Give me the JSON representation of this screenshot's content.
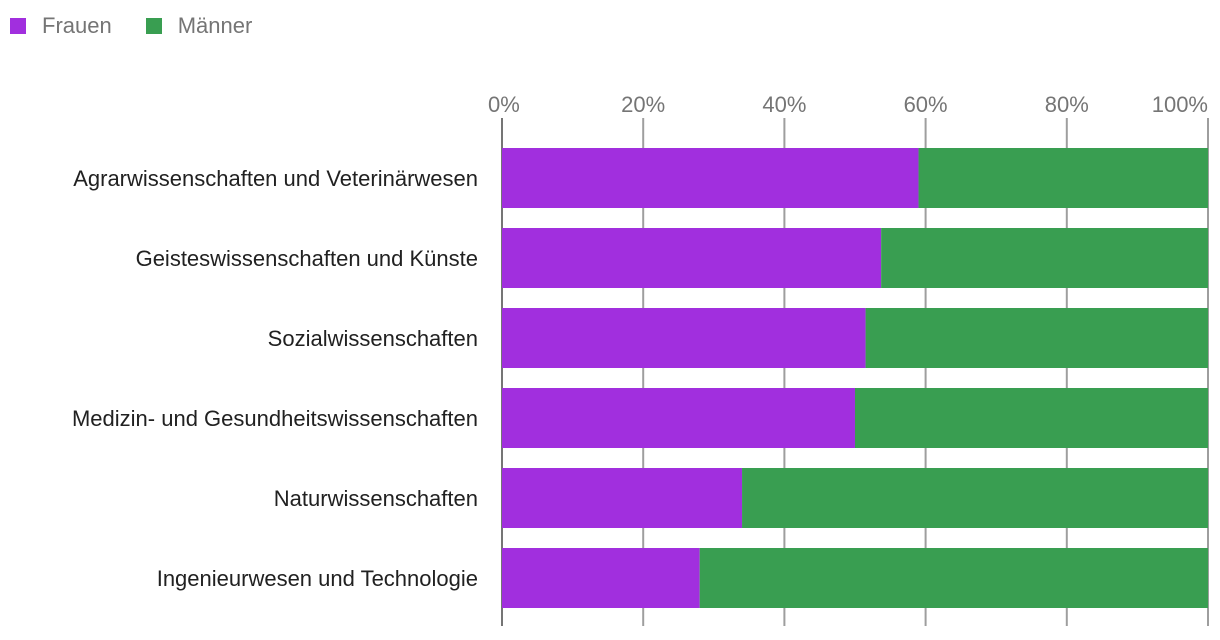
{
  "chart_data": {
    "type": "bar",
    "stacked": true,
    "orientation": "horizontal",
    "categories": [
      "Agrarwissenschaften und Veterinärwesen",
      "Geisteswissenschaften und Künste",
      "Sozialwissenschaften",
      "Medizin- und Gesundheitswissenschaften",
      "Naturwissenschaften",
      "Ingenieurwesen und Technologie"
    ],
    "series": [
      {
        "name": "Frauen",
        "color": "#a12fde",
        "values": [
          59,
          53.7,
          51.5,
          50,
          34,
          28
        ]
      },
      {
        "name": "Männer",
        "color": "#399e51",
        "values": [
          41,
          46.3,
          48.5,
          50,
          66,
          72
        ]
      }
    ],
    "x_ticks": [
      "0%",
      "20%",
      "40%",
      "60%",
      "80%",
      "100%"
    ],
    "xlim": [
      0,
      100
    ],
    "title": "",
    "xlabel": "",
    "ylabel": "",
    "legend_position": "top-left",
    "grid": true
  }
}
